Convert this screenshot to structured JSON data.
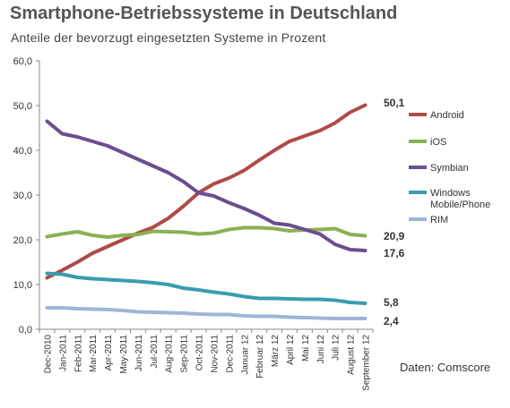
{
  "chart_data": {
    "type": "line",
    "title": "Smartphone-Betriebssysteme in Deutschland",
    "subtitle": "Anteile der bevorzugt eingesetzten Systeme in Prozent",
    "source": "Daten: Comscore",
    "xlabel": "",
    "ylabel": "",
    "ylim": [
      0,
      60
    ],
    "yticks": [
      "0,0",
      "10,0",
      "20,0",
      "30,0",
      "40,0",
      "50,0",
      "60,0"
    ],
    "grid": false,
    "legend": "right",
    "categories": [
      "Dec-2010",
      "Jan-2011",
      "Feb-2011",
      "Mar-2011",
      "Apr-2011",
      "May-2011",
      "Jun-2011",
      "Jul-2011",
      "Aug-2011",
      "Sep-2011",
      "Oct-2011",
      "Nov-2011",
      "Dec-2011",
      "Januar 12",
      "Februar 12",
      "März 12",
      "April 12",
      "Mai 12",
      "Juni 12",
      "Juli 12",
      "August 12",
      "September 12"
    ],
    "series": [
      {
        "name": "Android",
        "color": "#b04a46",
        "end_label": "50,1",
        "values": [
          11.5,
          13.2,
          15.0,
          17.0,
          18.5,
          20.0,
          21.5,
          22.8,
          24.8,
          27.5,
          30.5,
          32.5,
          33.8,
          35.5,
          37.8,
          40.0,
          42.0,
          43.2,
          44.4,
          46.1,
          48.5,
          50.1
        ]
      },
      {
        "name": "iOS",
        "color": "#8ab052",
        "end_label": "20,9",
        "values": [
          20.7,
          21.3,
          21.8,
          21.0,
          20.6,
          21.0,
          21.2,
          21.9,
          21.8,
          21.7,
          21.3,
          21.5,
          22.3,
          22.7,
          22.7,
          22.5,
          22.0,
          22.2,
          22.3,
          22.5,
          21.2,
          20.9
        ]
      },
      {
        "name": "Symbian",
        "color": "#6a4e8f",
        "end_label": "17,6",
        "values": [
          46.5,
          43.7,
          43.0,
          42.0,
          41.0,
          39.5,
          38.0,
          36.5,
          35.0,
          33.0,
          30.5,
          29.8,
          28.3,
          27.0,
          25.5,
          23.7,
          23.3,
          22.3,
          21.3,
          19.0,
          17.8,
          17.6
        ]
      },
      {
        "name": "Windows Mobile/Phone",
        "label_lines": [
          "Windows",
          "Mobile/Phone"
        ],
        "color": "#3a9cae",
        "end_label": "5,8",
        "values": [
          12.5,
          12.3,
          11.6,
          11.3,
          11.1,
          10.9,
          10.7,
          10.4,
          10.0,
          9.2,
          8.8,
          8.3,
          7.9,
          7.3,
          6.9,
          6.9,
          6.8,
          6.7,
          6.7,
          6.5,
          6.0,
          5.8
        ]
      },
      {
        "name": "RIM",
        "color": "#9fb5d8",
        "end_label": "2,4",
        "values": [
          4.8,
          4.8,
          4.6,
          4.5,
          4.4,
          4.2,
          3.9,
          3.8,
          3.7,
          3.6,
          3.4,
          3.3,
          3.3,
          3.0,
          2.9,
          2.9,
          2.7,
          2.6,
          2.5,
          2.4,
          2.4,
          2.4
        ]
      }
    ]
  }
}
